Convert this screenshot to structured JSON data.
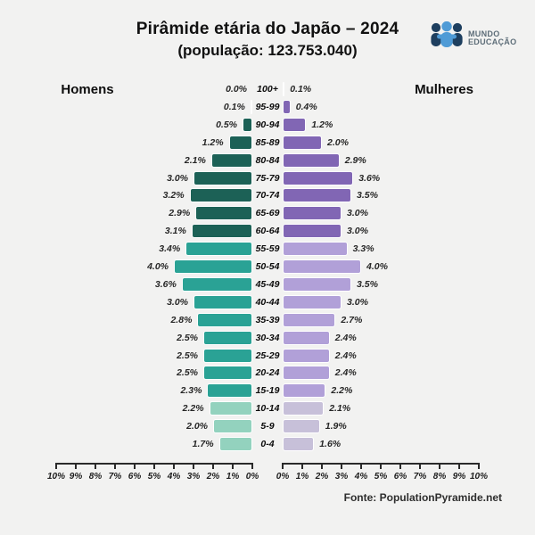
{
  "header": {
    "title": "Pirâmide etária do Japão – 2024",
    "subtitle": "(população: 123.753.040)"
  },
  "logo": {
    "line1": "MUNDO",
    "line2": "EDUCAÇÃO"
  },
  "side_labels": {
    "men": "Homens",
    "women": "Mulheres"
  },
  "footer": {
    "source": "Fonte: PopulationPyramide.net"
  },
  "colors": {
    "background": "#f2f2f1",
    "male_old": "#1c6156",
    "male_mid": "#2aa295",
    "male_young": "#93d2be",
    "female_old": "#8166b4",
    "female_mid": "#b1a0d8",
    "female_young": "#c7c0d9",
    "axis": "#2a2a2a",
    "logo_dark": "#1e3f5f",
    "logo_light": "#4f9bd6"
  },
  "chart_data": {
    "type": "bar",
    "variant": "population_pyramid",
    "title": "Pirâmide etária do Japão – 2024",
    "population_total": "123.753.040",
    "unit": "%",
    "categories": [
      "100+",
      "95-99",
      "90-94",
      "85-89",
      "80-84",
      "75-79",
      "70-74",
      "65-69",
      "60-64",
      "55-59",
      "50-54",
      "45-49",
      "40-44",
      "35-39",
      "30-34",
      "25-29",
      "20-24",
      "15-19",
      "10-14",
      "5-9",
      "0-4"
    ],
    "series": [
      {
        "name": "Homens",
        "side": "left",
        "values": [
          0.0,
          0.1,
          0.5,
          1.2,
          2.1,
          3.0,
          3.2,
          2.9,
          3.1,
          3.4,
          4.0,
          3.6,
          3.0,
          2.8,
          2.5,
          2.5,
          2.5,
          2.3,
          2.2,
          2.0,
          1.7
        ]
      },
      {
        "name": "Mulheres",
        "side": "right",
        "values": [
          0.1,
          0.4,
          1.2,
          2.0,
          2.9,
          3.6,
          3.5,
          3.0,
          3.0,
          3.3,
          4.0,
          3.5,
          3.0,
          2.7,
          2.4,
          2.4,
          2.4,
          2.2,
          2.1,
          1.9,
          1.6
        ]
      }
    ],
    "age_bands": [
      {
        "from_index": 0,
        "to_index": 8,
        "male_color": "#1c6156",
        "female_color": "#8166b4"
      },
      {
        "from_index": 9,
        "to_index": 17,
        "male_color": "#2aa295",
        "female_color": "#b1a0d8"
      },
      {
        "from_index": 18,
        "to_index": 20,
        "male_color": "#93d2be",
        "female_color": "#c7c0d9"
      }
    ],
    "axis": {
      "min": 0,
      "max": 10,
      "tick_step": 1,
      "left_tick_labels": [
        "10%",
        "9%",
        "8%",
        "7%",
        "6%",
        "5%",
        "4%",
        "3%",
        "2%",
        "1%",
        "0%"
      ],
      "right_tick_labels": [
        "0%",
        "1%",
        "2%",
        "3%",
        "4%",
        "5%",
        "6%",
        "7%",
        "8%",
        "9%",
        "10%"
      ]
    },
    "legend_position": "none",
    "grid": false
  }
}
